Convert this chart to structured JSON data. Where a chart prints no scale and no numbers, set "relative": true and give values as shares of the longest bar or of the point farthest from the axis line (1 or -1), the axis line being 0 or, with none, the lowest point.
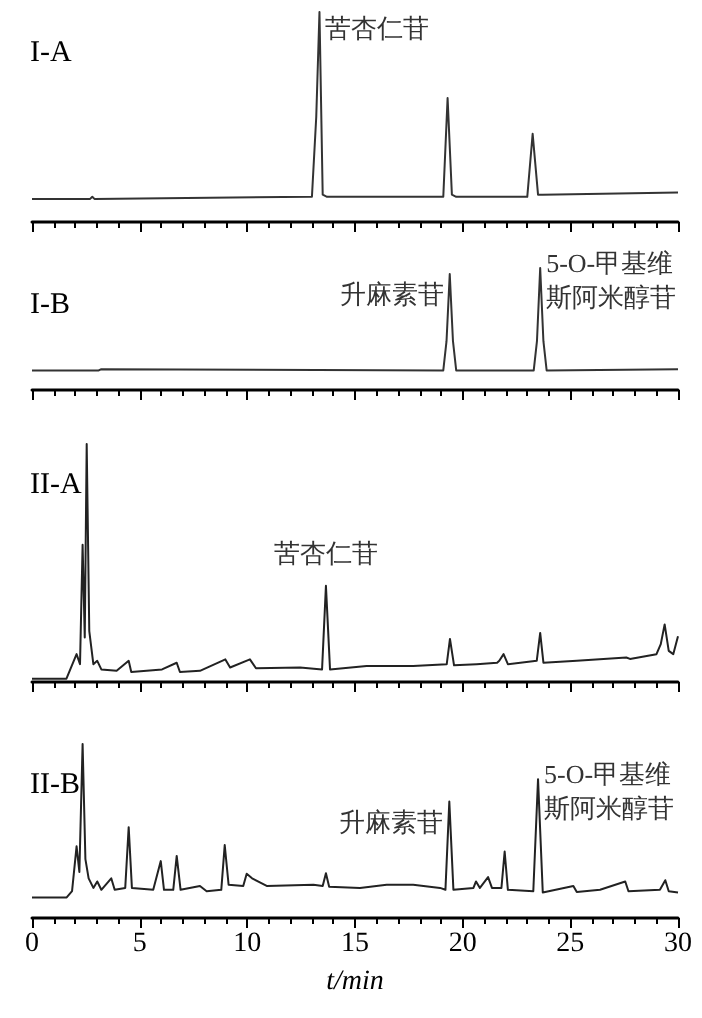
{
  "chart_data": [
    {
      "type": "line",
      "title": "I-A",
      "relative": true,
      "xlim": [
        0,
        30
      ],
      "xticks": [
        0,
        5,
        10,
        15,
        20,
        25,
        30
      ],
      "tick_labels": false,
      "annotations": [
        {
          "text": "苦杏仁苷",
          "x": 13.35,
          "y": 1
        }
      ],
      "series": [
        {
          "color": "#333333",
          "x": [
            0,
            2.7,
            2.8,
            2.9,
            13.0,
            13.2,
            13.35,
            13.5,
            13.7,
            19.1,
            19.3,
            19.5,
            19.7,
            23.0,
            23.25,
            23.5,
            23.7,
            30
          ],
          "values": [
            0.11,
            0.11,
            0.12,
            0.11,
            0.12,
            0.5,
            1,
            0.13,
            0.12,
            0.12,
            0.59,
            0.13,
            0.12,
            0.12,
            0.42,
            0.13,
            0.13,
            0.14
          ]
        }
      ]
    },
    {
      "type": "line",
      "title": "I-B",
      "relative": true,
      "xlim": [
        0,
        30
      ],
      "xticks": [
        0,
        5,
        10,
        15,
        20,
        25,
        30
      ],
      "tick_labels": false,
      "annotations": [
        {
          "text": "升麻素苷",
          "x": 19.4,
          "y": 0.95
        },
        {
          "text": "5-O-甲基维斯阿米醇苷",
          "x": 23.6,
          "y": 1
        }
      ],
      "series": [
        {
          "color": "#333333",
          "x": [
            0,
            3.1,
            3.2,
            19.1,
            19.25,
            19.4,
            19.55,
            19.7,
            23.3,
            23.45,
            23.6,
            23.75,
            23.9,
            30
          ],
          "values": [
            0.16,
            0.16,
            0.17,
            0.16,
            0.4,
            0.95,
            0.4,
            0.16,
            0.16,
            0.4,
            1,
            0.4,
            0.16,
            0.17
          ]
        }
      ]
    },
    {
      "type": "line",
      "title": "II-A",
      "relative": true,
      "xlim": [
        0,
        30
      ],
      "xticks": [
        0,
        5,
        10,
        15,
        20,
        25,
        30
      ],
      "tick_labels": false,
      "annotations": [
        {
          "text": "苦杏仁苷",
          "x": 13.65,
          "y": 0.404
        }
      ],
      "series": [
        {
          "color": "#222222",
          "x": [
            0,
            1.6,
            2.07,
            2.23,
            2.35,
            2.45,
            2.54,
            2.66,
            2.85,
            3.03,
            3.22,
            3.93,
            4.49,
            4.61,
            6.04,
            6.72,
            6.87,
            7.8,
            8.98,
            9.2,
            10.12,
            10.4,
            12.45,
            13.47,
            13.65,
            13.84,
            15.54,
            17.7,
            19.26,
            19.41,
            19.6,
            20.65,
            21.6,
            21.7,
            21.9,
            22.1,
            23.44,
            23.6,
            23.75,
            25.3,
            27.6,
            27.77,
            29.0,
            29.2,
            29.38,
            29.57,
            29.78,
            30
          ],
          "values": [
            0.014,
            0.014,
            0.117,
            0.075,
            0.577,
            0.187,
            1,
            0.214,
            0.075,
            0.089,
            0.053,
            0.047,
            0.089,
            0.042,
            0.053,
            0.081,
            0.042,
            0.047,
            0.095,
            0.061,
            0.095,
            0.058,
            0.061,
            0.053,
            0.404,
            0.053,
            0.067,
            0.067,
            0.075,
            0.181,
            0.07,
            0.075,
            0.081,
            0.089,
            0.117,
            0.075,
            0.089,
            0.206,
            0.081,
            0.089,
            0.103,
            0.097,
            0.117,
            0.159,
            0.242,
            0.131,
            0.117,
            0.192
          ]
        }
      ]
    },
    {
      "type": "line",
      "title": "II-B",
      "xlabel": "t/min",
      "relative": true,
      "xlim": [
        0,
        30
      ],
      "xticks": [
        0,
        5,
        10,
        15,
        20,
        25,
        30
      ],
      "tick_labels": "x",
      "annotations": [
        {
          "text": "升麻素苷",
          "x": 19.38,
          "y": 0.669
        },
        {
          "text": "5-O-甲基维斯阿米醇苷",
          "x": 23.5,
          "y": 0.798
        }
      ],
      "series": [
        {
          "color": "#222222",
          "x": [
            0,
            1.61,
            1.86,
            2.07,
            2.2,
            2.35,
            2.48,
            2.63,
            2.85,
            3.03,
            3.22,
            3.68,
            3.84,
            4.33,
            4.49,
            4.64,
            5.63,
            5.98,
            6.13,
            6.56,
            6.72,
            6.9,
            7.8,
            8.11,
            8.79,
            8.95,
            9.13,
            9.81,
            9.97,
            10.22,
            10.9,
            13.07,
            13.5,
            13.65,
            13.8,
            15.23,
            16.47,
            17.7,
            18.95,
            19.2,
            19.38,
            19.57,
            20.5,
            20.62,
            20.8,
            21.18,
            21.36,
            21.8,
            21.95,
            22.1,
            23.28,
            23.5,
            23.72,
            25.14,
            25.3,
            26.38,
            27.55,
            27.7,
            29.16,
            29.41,
            29.57,
            30
          ],
          "values": [
            0.118,
            0.118,
            0.154,
            0.412,
            0.265,
            1,
            0.338,
            0.228,
            0.173,
            0.21,
            0.162,
            0.228,
            0.162,
            0.173,
            0.522,
            0.173,
            0.162,
            0.327,
            0.162,
            0.162,
            0.357,
            0.162,
            0.184,
            0.154,
            0.162,
            0.419,
            0.191,
            0.184,
            0.254,
            0.228,
            0.184,
            0.191,
            0.184,
            0.257,
            0.18,
            0.173,
            0.191,
            0.191,
            0.173,
            0.162,
            0.669,
            0.162,
            0.173,
            0.21,
            0.173,
            0.235,
            0.173,
            0.173,
            0.382,
            0.162,
            0.154,
            0.798,
            0.147,
            0.184,
            0.15,
            0.162,
            0.21,
            0.154,
            0.162,
            0.217,
            0.154,
            0.147
          ]
        }
      ]
    }
  ]
}
